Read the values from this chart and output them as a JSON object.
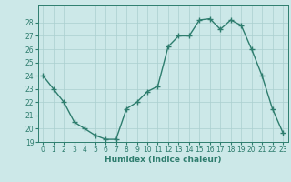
{
  "x": [
    0,
    1,
    2,
    3,
    4,
    5,
    6,
    7,
    8,
    9,
    10,
    11,
    12,
    13,
    14,
    15,
    16,
    17,
    18,
    19,
    20,
    21,
    22,
    23
  ],
  "y": [
    24.0,
    23.0,
    22.0,
    20.5,
    20.0,
    19.5,
    19.2,
    19.2,
    21.5,
    22.0,
    22.8,
    23.2,
    26.2,
    27.0,
    27.0,
    28.2,
    28.3,
    27.5,
    28.2,
    27.8,
    26.0,
    24.0,
    21.5,
    19.7
  ],
  "line_color": "#2e7d6e",
  "marker_color": "#2e7d6e",
  "bg_color": "#cce8e8",
  "grid_color": "#aacfcf",
  "xlabel": "Humidex (Indice chaleur)",
  "ylim_min": 19,
  "ylim_max": 29,
  "xlim_min": -0.5,
  "xlim_max": 23.5,
  "yticks": [
    19,
    20,
    21,
    22,
    23,
    24,
    25,
    26,
    27,
    28
  ],
  "xticks": [
    0,
    1,
    2,
    3,
    4,
    5,
    6,
    7,
    8,
    9,
    10,
    11,
    12,
    13,
    14,
    15,
    16,
    17,
    18,
    19,
    20,
    21,
    22,
    23
  ],
  "tick_fontsize": 5.5,
  "xlabel_fontsize": 6.5,
  "line_width": 1.0,
  "marker_size": 4
}
